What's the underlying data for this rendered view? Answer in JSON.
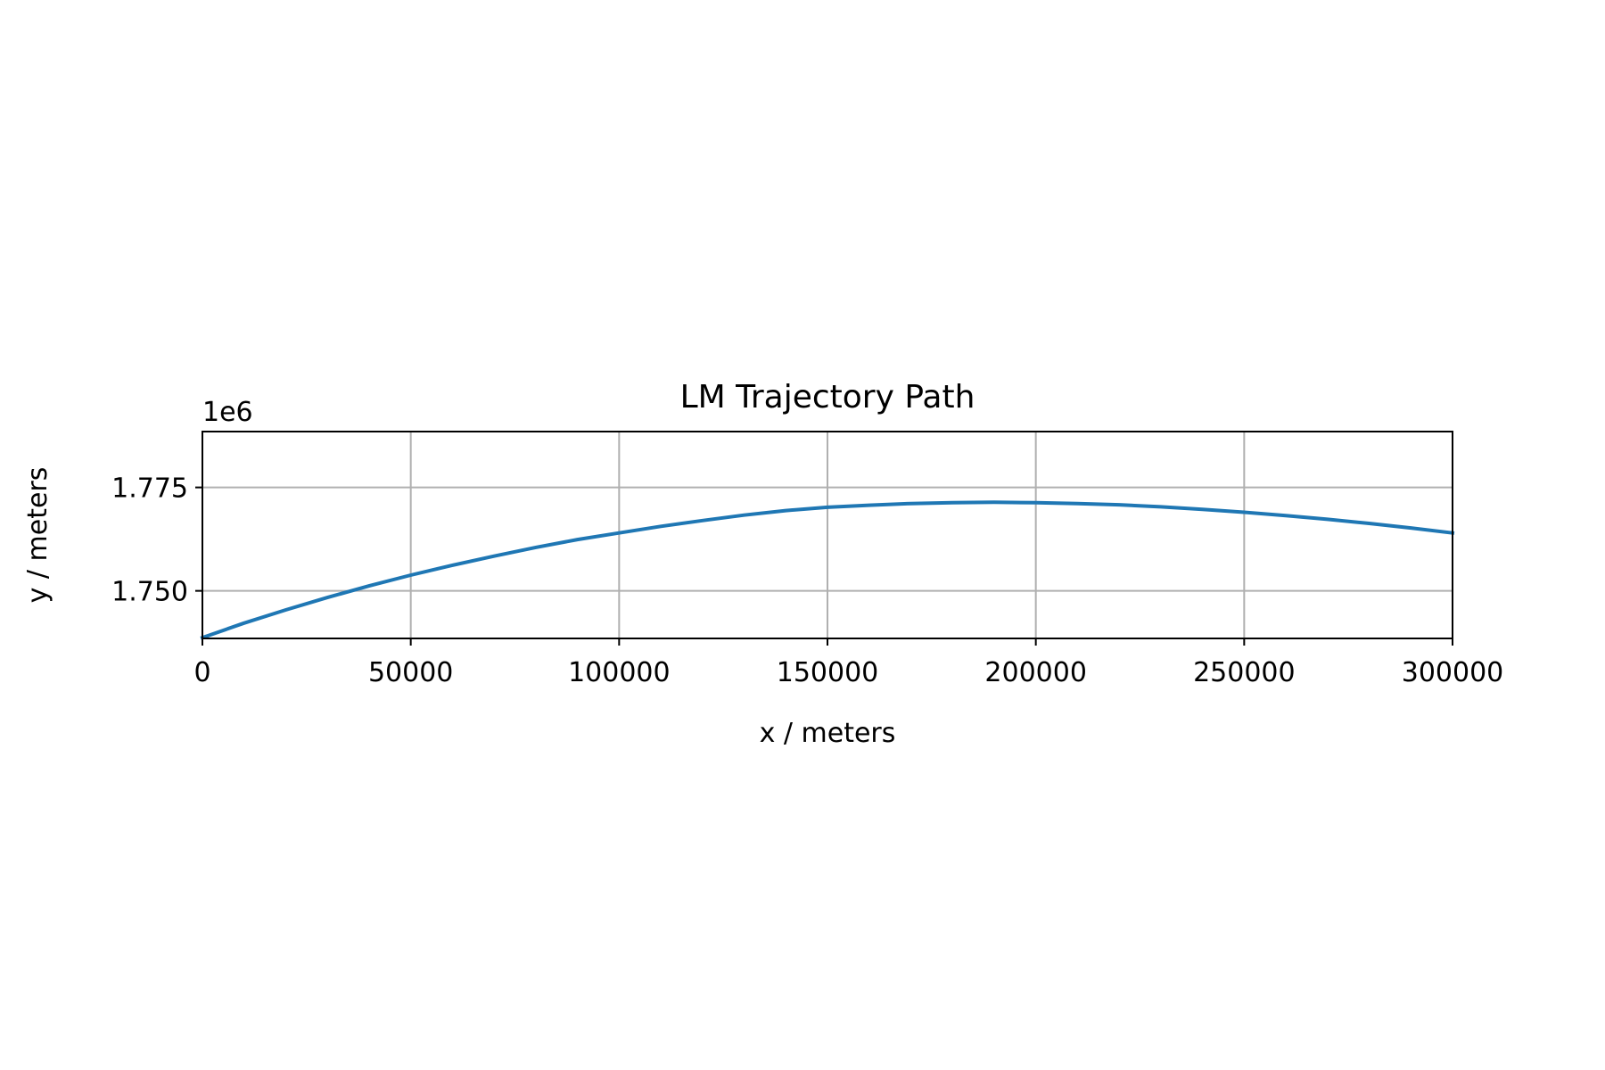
{
  "chart_data": {
    "type": "line",
    "title": "LM Trajectory Path",
    "xlabel": "x / meters",
    "ylabel": "y / meters",
    "y_offset_label": "1e6",
    "xlim": [
      0,
      300000
    ],
    "ylim": [
      1738500,
      1788500
    ],
    "x_ticks": [
      0,
      50000,
      100000,
      150000,
      200000,
      250000,
      300000
    ],
    "x_tick_labels": [
      "0",
      "50000",
      "100000",
      "150000",
      "200000",
      "250000",
      "300000"
    ],
    "y_ticks": [
      1750000,
      1775000
    ],
    "y_tick_labels": [
      "1.750",
      "1.775"
    ],
    "grid": true,
    "legend": "none",
    "colors": {
      "line": "#1f77b4",
      "grid": "#b0b0b0",
      "axes": "#000000"
    },
    "series": [
      {
        "x": [
          0,
          10000,
          20000,
          30000,
          40000,
          50000,
          60000,
          70000,
          80000,
          90000,
          100000,
          110000,
          120000,
          130000,
          140000,
          150000,
          160000,
          170000,
          180000,
          190000,
          200000,
          210000,
          220000,
          230000,
          240000,
          250000,
          260000,
          270000,
          280000,
          290000,
          300000
        ],
        "y": [
          1738700,
          1742200,
          1745400,
          1748400,
          1751200,
          1753800,
          1756200,
          1758400,
          1760500,
          1762400,
          1764000,
          1765600,
          1767000,
          1768300,
          1769400,
          1770200,
          1770700,
          1771100,
          1771300,
          1771400,
          1771300,
          1771100,
          1770800,
          1770300,
          1769700,
          1769000,
          1768200,
          1767300,
          1766300,
          1765200,
          1764000
        ]
      }
    ]
  }
}
